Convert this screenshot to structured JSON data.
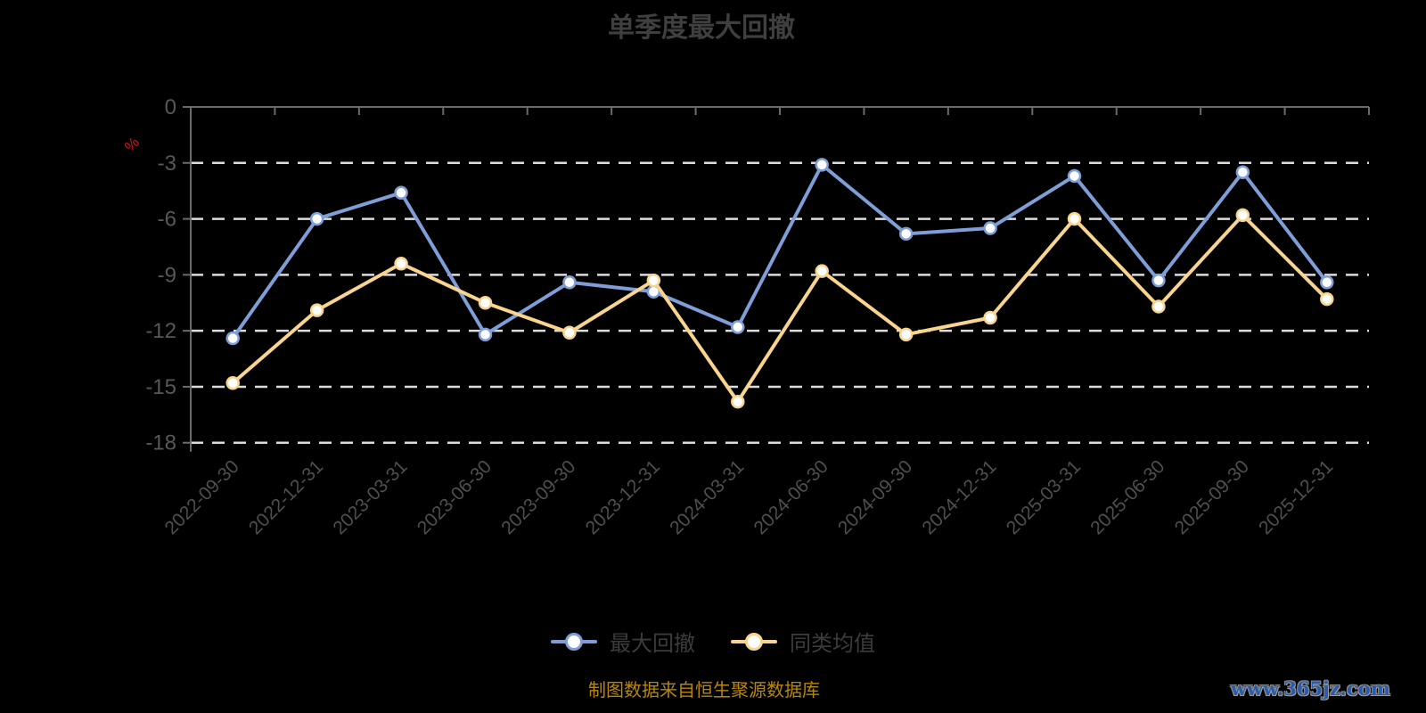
{
  "title": "单季度最大回撤",
  "caption": "制图数据来自恒生聚源数据库",
  "watermark": "www.365jz.com",
  "colors": {
    "series_drawdown": "#7f9ed8",
    "series_peer": "#f8d48e",
    "grid_dash": "#dcdcdc",
    "axis_line": "#6b6b6b",
    "axis_label": "#585858",
    "x_label": "#4f4f4f",
    "title_text": "#3f3f3f",
    "legend_text": "#3c3c3c",
    "caption_text": "#b8860b",
    "unit_label": "#d01616",
    "watermark_text": "#2a5caa",
    "marker_fill": "#ffffff"
  },
  "y_axis": {
    "unit": "%",
    "tick_labels": [
      "0",
      "-3",
      "-6",
      "-9",
      "-12",
      "-15",
      "-18"
    ]
  },
  "legend": [
    {
      "label": "最大回撤",
      "color": "#7f9ed8"
    },
    {
      "label": "同类均值",
      "color": "#f8d48e"
    }
  ],
  "chart_data": {
    "type": "line",
    "title": "单季度最大回撤",
    "categories": [
      "2022-09-30",
      "2022-12-31",
      "2023-03-31",
      "2023-06-30",
      "2023-09-30",
      "2023-12-31",
      "2024-03-31",
      "2024-06-30",
      "2024-09-30",
      "2024-12-31",
      "2025-03-31",
      "2025-06-30",
      "2025-09-30",
      "2025-12-31"
    ],
    "series": [
      {
        "name": "最大回撤",
        "color": "#7f9ed8",
        "values": [
          -12.4,
          -6.0,
          -4.6,
          -12.2,
          -9.4,
          -9.9,
          -11.8,
          -3.1,
          -6.8,
          -6.5,
          -3.7,
          -9.3,
          -3.5,
          -9.4
        ]
      },
      {
        "name": "同类均值",
        "color": "#f8d48e",
        "values": [
          -14.8,
          -10.9,
          -8.4,
          -10.5,
          -12.1,
          -9.3,
          -15.8,
          -8.8,
          -12.2,
          -11.3,
          -6.0,
          -10.7,
          -5.8,
          -10.3
        ]
      }
    ],
    "ylabel": "%",
    "ylim": [
      -18,
      0
    ],
    "yticks": [
      0,
      -3,
      -6,
      -9,
      -12,
      -15,
      -18
    ],
    "grid": "horizontal-dashed",
    "legend_position": "bottom"
  }
}
